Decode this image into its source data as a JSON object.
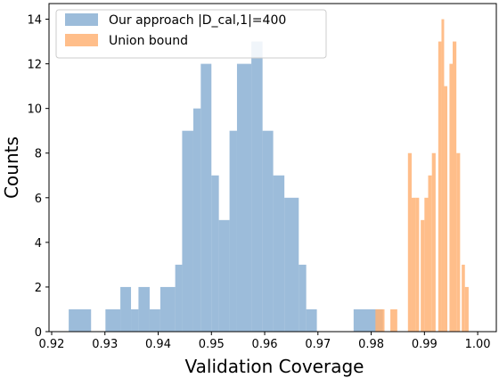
{
  "chart_data": {
    "type": "histogram",
    "xlabel": "Validation Coverage",
    "ylabel": "Counts",
    "xlim": [
      0.9195,
      1.0035
    ],
    "ylim": [
      0,
      14.7
    ],
    "x_ticks": [
      "0.92",
      "0.93",
      "0.94",
      "0.95",
      "0.96",
      "0.97",
      "0.98",
      "0.99",
      "1.00"
    ],
    "y_ticks": [
      "0",
      "2",
      "4",
      "6",
      "8",
      "10",
      "12",
      "14"
    ],
    "grid": false,
    "legend_position": "top-left",
    "series": [
      {
        "name": "Our approach |D_cal,1|=400",
        "color": "#7BA6CE",
        "opacity": 0.75,
        "bins": [
          {
            "x0": 0.9232,
            "x1": 0.9274,
            "count": 1
          },
          {
            "x0": 0.9301,
            "x1": 0.9329,
            "count": 1
          },
          {
            "x0": 0.9329,
            "x1": 0.9349,
            "count": 2
          },
          {
            "x0": 0.9349,
            "x1": 0.9363,
            "count": 1
          },
          {
            "x0": 0.9363,
            "x1": 0.9384,
            "count": 2
          },
          {
            "x0": 0.9384,
            "x1": 0.9404,
            "count": 1
          },
          {
            "x0": 0.9404,
            "x1": 0.9432,
            "count": 2
          },
          {
            "x0": 0.9432,
            "x1": 0.9445,
            "count": 3
          },
          {
            "x0": 0.9445,
            "x1": 0.9466,
            "count": 9
          },
          {
            "x0": 0.9466,
            "x1": 0.948,
            "count": 10
          },
          {
            "x0": 0.948,
            "x1": 0.95,
            "count": 12
          },
          {
            "x0": 0.95,
            "x1": 0.9514,
            "count": 7
          },
          {
            "x0": 0.9514,
            "x1": 0.9534,
            "count": 5
          },
          {
            "x0": 0.9534,
            "x1": 0.9548,
            "count": 9
          },
          {
            "x0": 0.9548,
            "x1": 0.9575,
            "count": 12
          },
          {
            "x0": 0.9575,
            "x1": 0.9596,
            "count": 13
          },
          {
            "x0": 0.9596,
            "x1": 0.9616,
            "count": 9
          },
          {
            "x0": 0.9616,
            "x1": 0.9637,
            "count": 7
          },
          {
            "x0": 0.9637,
            "x1": 0.9664,
            "count": 6
          },
          {
            "x0": 0.9664,
            "x1": 0.9678,
            "count": 3
          },
          {
            "x0": 0.9678,
            "x1": 0.9698,
            "count": 1
          },
          {
            "x0": 0.9767,
            "x1": 0.9822,
            "count": 1
          }
        ]
      },
      {
        "name": "Union bound",
        "color": "#FFB375",
        "opacity": 0.85,
        "bins": [
          {
            "x0": 0.9808,
            "x1": 0.9825,
            "count": 1
          },
          {
            "x0": 0.9836,
            "x1": 0.9849,
            "count": 1
          },
          {
            "x0": 0.9869,
            "x1": 0.9876,
            "count": 8
          },
          {
            "x0": 0.9876,
            "x1": 0.9883,
            "count": 6
          },
          {
            "x0": 0.9883,
            "x1": 0.989,
            "count": 6
          },
          {
            "x0": 0.9893,
            "x1": 0.99,
            "count": 5
          },
          {
            "x0": 0.99,
            "x1": 0.9907,
            "count": 6
          },
          {
            "x0": 0.9907,
            "x1": 0.9914,
            "count": 7
          },
          {
            "x0": 0.9914,
            "x1": 0.9921,
            "count": 8
          },
          {
            "x0": 0.9926,
            "x1": 0.9932,
            "count": 13
          },
          {
            "x0": 0.9932,
            "x1": 0.9937,
            "count": 14
          },
          {
            "x0": 0.9937,
            "x1": 0.9943,
            "count": 11
          },
          {
            "x0": 0.9947,
            "x1": 0.9953,
            "count": 12
          },
          {
            "x0": 0.9953,
            "x1": 0.996,
            "count": 13
          },
          {
            "x0": 0.996,
            "x1": 0.9967,
            "count": 8
          },
          {
            "x0": 0.997,
            "x1": 0.9976,
            "count": 3
          },
          {
            "x0": 0.9976,
            "x1": 0.9983,
            "count": 2
          }
        ]
      }
    ]
  }
}
